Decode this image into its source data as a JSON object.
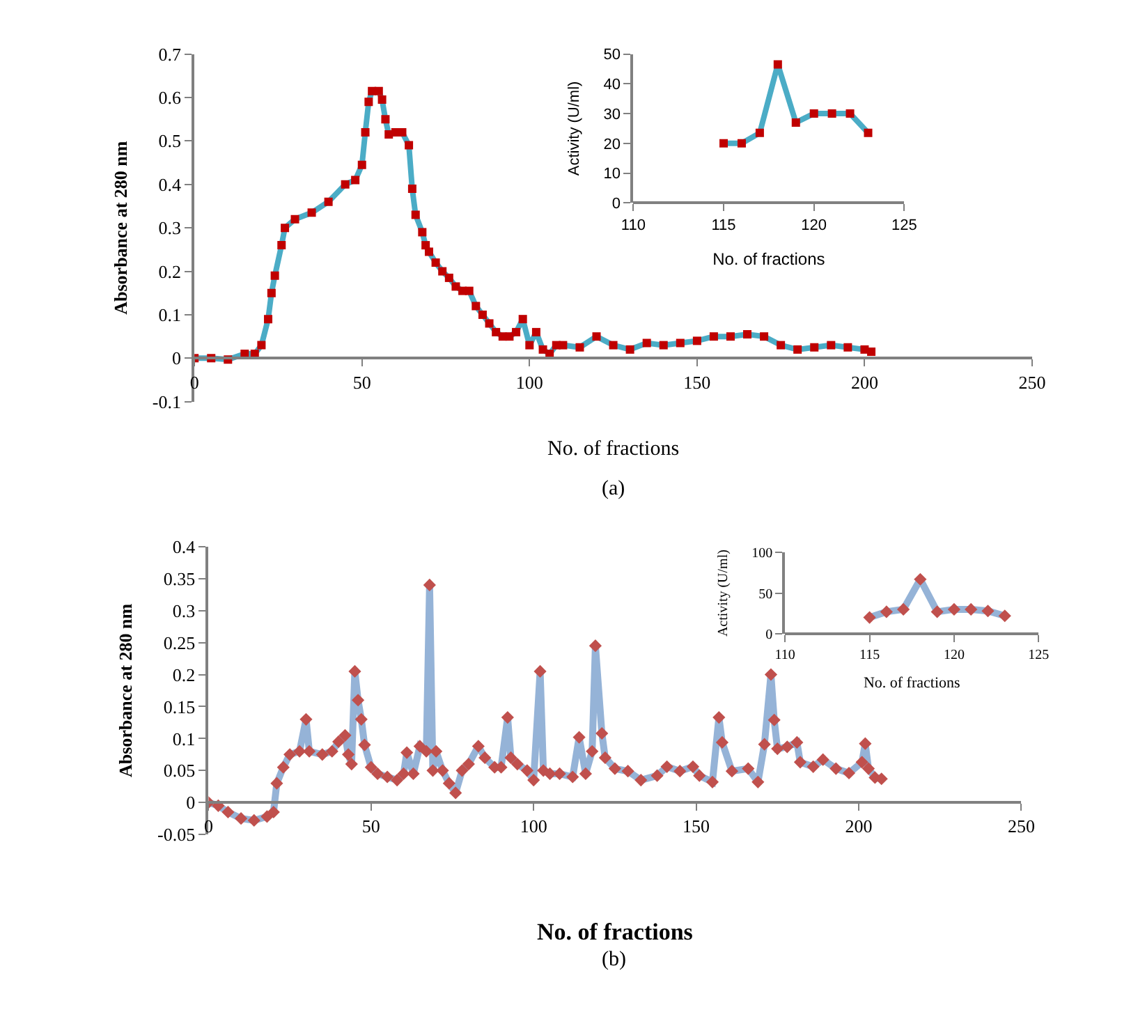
{
  "chart_data": [
    {
      "type": "line",
      "xlabel": "No. of fractions",
      "ylabel": "Absorbance at 280 nm",
      "annotations": [
        "(a)"
      ],
      "xlim": [
        0,
        250
      ],
      "xticks": [
        0,
        50,
        100,
        150,
        200,
        250
      ],
      "ylim": [
        -0.1,
        0.7
      ],
      "yticks": [
        -0.1,
        0,
        0.1,
        0.2,
        0.3,
        0.4,
        0.5,
        0.6,
        0.7
      ],
      "x": [
        0,
        5,
        10,
        15,
        18,
        20,
        22,
        23,
        24,
        26,
        27,
        30,
        35,
        40,
        45,
        48,
        50,
        51,
        52,
        53,
        55,
        56,
        57,
        58,
        60,
        62,
        64,
        65,
        66,
        68,
        69,
        70,
        72,
        74,
        76,
        78,
        80,
        82,
        84,
        86,
        88,
        90,
        92,
        94,
        96,
        98,
        100,
        102,
        104,
        106,
        108,
        110,
        115,
        120,
        125,
        130,
        135,
        140,
        145,
        150,
        155,
        160,
        165,
        170,
        175,
        180,
        185,
        190,
        195,
        200,
        202
      ],
      "series": [
        {
          "color": "#4bacc6",
          "marker": "none",
          "values": [
            0,
            0,
            -0.003,
            0.01,
            0.01,
            0.03,
            0.09,
            0.15,
            0.19,
            0.26,
            0.3,
            0.32,
            0.335,
            0.36,
            0.4,
            0.41,
            0.445,
            0.52,
            0.59,
            0.615,
            0.615,
            0.595,
            0.55,
            0.515,
            0.52,
            0.52,
            0.49,
            0.39,
            0.33,
            0.29,
            0.26,
            0.245,
            0.22,
            0.2,
            0.185,
            0.165,
            0.155,
            0.155,
            0.12,
            0.1,
            0.08,
            0.06,
            0.05,
            0.05,
            0.06,
            0.09,
            0.03,
            0.06,
            0.02,
            0.01,
            0.03,
            0.03,
            0.025,
            0.05,
            0.03,
            0.02,
            0.035,
            0.03,
            0.035,
            0.04,
            0.05,
            0.05,
            0.055,
            0.05,
            0.03,
            0.02,
            0.025,
            0.03,
            0.025,
            0.02,
            0.015
          ]
        },
        {
          "type": "scatter",
          "marker": "square",
          "color": "#c00000",
          "values": [
            0,
            0,
            -0.003,
            0.01,
            0.01,
            0.03,
            0.09,
            0.15,
            0.19,
            0.26,
            0.3,
            0.32,
            0.335,
            0.36,
            0.4,
            0.41,
            0.445,
            0.52,
            0.59,
            0.615,
            0.615,
            0.595,
            0.55,
            0.515,
            0.52,
            0.52,
            0.49,
            0.39,
            0.33,
            0.29,
            0.26,
            0.245,
            0.22,
            0.2,
            0.185,
            0.165,
            0.155,
            0.155,
            0.12,
            0.1,
            0.08,
            0.06,
            0.05,
            0.05,
            0.06,
            0.09,
            0.03,
            0.06,
            0.02,
            0.01,
            0.03,
            0.03,
            0.025,
            0.05,
            0.03,
            0.02,
            0.035,
            0.03,
            0.035,
            0.04,
            0.05,
            0.05,
            0.055,
            0.05,
            0.03,
            0.02,
            0.025,
            0.03,
            0.025,
            0.02,
            0.015
          ]
        }
      ]
    },
    {
      "type": "line",
      "xlabel": "No. of fractions",
      "ylabel": "Activity (U/ml)",
      "xlim": [
        110,
        125
      ],
      "xticks": [
        110,
        115,
        120,
        125
      ],
      "ylim": [
        0,
        50
      ],
      "yticks": [
        0,
        10,
        20,
        30,
        40,
        50
      ],
      "x": [
        115,
        116,
        117,
        118,
        119,
        120,
        121,
        122,
        123
      ],
      "series": [
        {
          "color": "#4bacc6",
          "marker": "none",
          "values": [
            20,
            20,
            23.5,
            46.5,
            27,
            30,
            30,
            30,
            23.5
          ]
        },
        {
          "type": "scatter",
          "marker": "square",
          "color": "#c00000",
          "values": [
            20,
            20,
            23.5,
            46.5,
            27,
            30,
            30,
            30,
            23.5
          ]
        }
      ]
    },
    {
      "type": "line",
      "xlabel": "No. of fractions",
      "ylabel": "Absorbance at 280 nm",
      "annotations": [
        "(b)"
      ],
      "xlim": [
        0,
        250
      ],
      "xticks": [
        0,
        50,
        100,
        150,
        200,
        250
      ],
      "ylim": [
        -0.05,
        0.4
      ],
      "yticks": [
        -0.05,
        0,
        0.05,
        0.1,
        0.15,
        0.2,
        0.25,
        0.3,
        0.35,
        0.4
      ],
      "x": [
        0,
        3,
        6,
        10,
        14,
        18,
        20,
        21,
        23,
        25,
        28,
        30,
        31,
        35,
        38,
        40,
        42,
        43,
        44,
        45,
        46,
        47,
        48,
        50,
        52,
        55,
        58,
        60,
        61,
        63,
        65,
        67,
        68,
        69,
        70,
        72,
        74,
        76,
        78,
        80,
        83,
        85,
        88,
        90,
        92,
        93,
        95,
        98,
        100,
        102,
        103,
        105,
        108,
        112,
        114,
        116,
        118,
        119,
        121,
        122,
        125,
        129,
        133,
        138,
        141,
        145,
        149,
        151,
        155,
        157,
        158,
        161,
        166,
        169,
        171,
        173,
        174,
        175,
        178,
        181,
        182,
        186,
        189,
        193,
        197,
        201,
        202,
        203,
        205,
        207
      ],
      "series": [
        {
          "color": "#95b3d7",
          "marker": "none",
          "values": [
            0,
            -0.005,
            -0.015,
            -0.025,
            -0.028,
            -0.022,
            -0.015,
            0.03,
            0.055,
            0.075,
            0.08,
            0.13,
            0.08,
            0.075,
            0.08,
            0.095,
            0.105,
            0.075,
            0.06,
            0.205,
            0.16,
            0.13,
            0.09,
            0.055,
            0.045,
            0.04,
            0.035,
            0.045,
            0.078,
            0.045,
            0.088,
            0.08,
            0.34,
            0.05,
            0.08,
            0.05,
            0.03,
            0.015,
            0.05,
            0.06,
            0.088,
            0.07,
            0.055,
            0.055,
            0.133,
            0.07,
            0.06,
            0.05,
            0.035,
            0.205,
            0.05,
            0.045,
            0.045,
            0.04,
            0.102,
            0.045,
            0.08,
            0.245,
            0.108,
            0.07,
            0.053,
            0.049,
            0.035,
            0.042,
            0.056,
            0.049,
            0.056,
            0.042,
            0.032,
            0.133,
            0.094,
            0.049,
            0.053,
            0.032,
            0.091,
            0.2,
            0.129,
            0.084,
            0.087,
            0.094,
            0.063,
            0.056,
            0.067,
            0.053,
            0.046,
            0.063,
            0.092,
            0.053,
            0.039,
            0.037
          ]
        },
        {
          "type": "scatter",
          "marker": "diamond",
          "color": "#c0504d",
          "values": [
            0,
            -0.005,
            -0.015,
            -0.025,
            -0.028,
            -0.022,
            -0.015,
            0.03,
            0.055,
            0.075,
            0.08,
            0.13,
            0.08,
            0.075,
            0.08,
            0.095,
            0.105,
            0.075,
            0.06,
            0.205,
            0.16,
            0.13,
            0.09,
            0.055,
            0.045,
            0.04,
            0.035,
            0.045,
            0.078,
            0.045,
            0.088,
            0.08,
            0.34,
            0.05,
            0.08,
            0.05,
            0.03,
            0.015,
            0.05,
            0.06,
            0.088,
            0.07,
            0.055,
            0.055,
            0.133,
            0.07,
            0.06,
            0.05,
            0.035,
            0.205,
            0.05,
            0.045,
            0.045,
            0.04,
            0.102,
            0.045,
            0.08,
            0.245,
            0.108,
            0.07,
            0.053,
            0.049,
            0.035,
            0.042,
            0.056,
            0.049,
            0.056,
            0.042,
            0.032,
            0.133,
            0.094,
            0.049,
            0.053,
            0.032,
            0.091,
            0.2,
            0.129,
            0.084,
            0.087,
            0.094,
            0.063,
            0.056,
            0.067,
            0.053,
            0.046,
            0.063,
            0.092,
            0.053,
            0.039,
            0.037
          ]
        }
      ]
    },
    {
      "type": "line",
      "xlabel": "No. of fractions",
      "ylabel": "Activity (U/ml)",
      "xlim": [
        110,
        125
      ],
      "xticks": [
        110,
        115,
        120,
        125
      ],
      "ylim": [
        0,
        100
      ],
      "yticks": [
        0,
        50,
        100
      ],
      "x": [
        115,
        116,
        117,
        118,
        119,
        120,
        121,
        122,
        123
      ],
      "series": [
        {
          "color": "#95b3d7",
          "marker": "none",
          "values": [
            20,
            27,
            30,
            67,
            27,
            30,
            30,
            28,
            22
          ]
        },
        {
          "type": "scatter",
          "marker": "diamond",
          "color": "#c0504d",
          "values": [
            20,
            27,
            30,
            67,
            27,
            30,
            30,
            28,
            22
          ]
        }
      ]
    }
  ]
}
